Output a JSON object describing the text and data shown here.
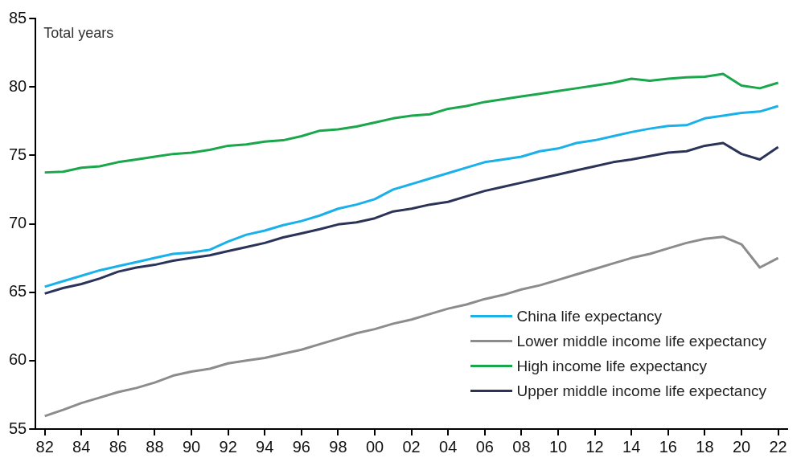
{
  "chart_data": {
    "type": "line",
    "ylabel": "Total years",
    "categories": [
      "82",
      null,
      "84",
      null,
      "86",
      null,
      "88",
      null,
      "90",
      null,
      "92",
      null,
      "94",
      null,
      "96",
      null,
      "98",
      null,
      "00",
      null,
      "02",
      null,
      "04",
      null,
      "06",
      null,
      "08",
      null,
      "10",
      null,
      "12",
      null,
      "14",
      null,
      "16",
      null,
      "18",
      null,
      "20",
      null,
      "22"
    ],
    "series": [
      {
        "name": "China life expectancy",
        "color": "#1ab0ea",
        "values": [
          65.4,
          65.8,
          66.2,
          66.6,
          66.9,
          67.2,
          67.5,
          67.8,
          67.9,
          68.1,
          68.7,
          69.2,
          69.5,
          69.9,
          70.2,
          70.6,
          71.1,
          71.4,
          71.8,
          72.5,
          72.9,
          73.3,
          73.7,
          74.1,
          74.5,
          74.7,
          74.9,
          75.3,
          75.5,
          75.9,
          76.1,
          76.4,
          76.7,
          76.95,
          77.15,
          77.2,
          77.7,
          77.9,
          78.1,
          78.2,
          78.6
        ]
      },
      {
        "name": "Lower middle income life expectancy",
        "color": "#8c8c8c",
        "values": [
          55.95,
          56.4,
          56.9,
          57.3,
          57.7,
          58.0,
          58.4,
          58.9,
          59.2,
          59.4,
          59.8,
          60.0,
          60.2,
          60.5,
          60.8,
          61.2,
          61.6,
          62.0,
          62.3,
          62.7,
          63.0,
          63.4,
          63.8,
          64.1,
          64.5,
          64.8,
          65.2,
          65.5,
          65.9,
          66.3,
          66.7,
          67.1,
          67.5,
          67.8,
          68.2,
          68.6,
          68.9,
          69.05,
          68.5,
          66.8,
          67.5
        ]
      },
      {
        "name": "High income life expectancy",
        "color": "#1aa64a",
        "values": [
          73.75,
          73.8,
          74.1,
          74.2,
          74.5,
          74.7,
          74.9,
          75.1,
          75.2,
          75.4,
          75.7,
          75.8,
          76.0,
          76.1,
          76.4,
          76.8,
          76.9,
          77.1,
          77.4,
          77.7,
          77.9,
          78.0,
          78.4,
          78.6,
          78.9,
          79.1,
          79.3,
          79.5,
          79.7,
          79.9,
          80.1,
          80.3,
          80.6,
          80.45,
          80.6,
          80.7,
          80.75,
          80.95,
          80.1,
          79.9,
          80.3
        ]
      },
      {
        "name": "Upper middle income life expectancy",
        "color": "#2b3358",
        "values": [
          64.9,
          65.3,
          65.6,
          66.0,
          66.5,
          66.8,
          67.0,
          67.3,
          67.5,
          67.7,
          68.0,
          68.3,
          68.6,
          69.0,
          69.3,
          69.6,
          69.95,
          70.1,
          70.4,
          70.9,
          71.1,
          71.4,
          71.6,
          72.0,
          72.4,
          72.7,
          73.0,
          73.3,
          73.6,
          73.9,
          74.2,
          74.5,
          74.7,
          74.95,
          75.2,
          75.3,
          75.7,
          75.9,
          75.1,
          74.7,
          75.6
        ]
      }
    ],
    "ylim": [
      55,
      85
    ],
    "yticks": [
      55,
      60,
      65,
      70,
      75,
      80,
      85
    ],
    "grid": false,
    "legend": "bottom right",
    "marker": "none",
    "line_style": "solid"
  }
}
